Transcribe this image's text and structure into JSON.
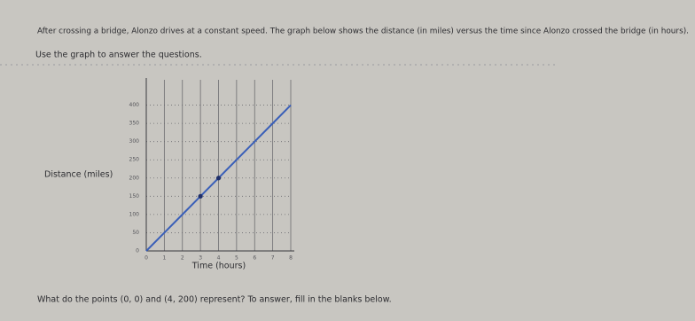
{
  "intro": "After crossing a bridge, Alonzo drives at a constant speed. The graph below shows the distance (in miles) versus the time since Alonzo crossed the bridge (in hours).",
  "instruction": "Use the graph to answer the questions.",
  "question": "What do the points (0, 0) and (4, 200) represent? To answer, fill in the blanks below.",
  "chart_data": {
    "type": "line",
    "x_label": "Time (hours)",
    "y_label": "Distance (miles)",
    "x": [
      0,
      1,
      2,
      3,
      4,
      5,
      6,
      7,
      8
    ],
    "series": [
      {
        "color": "#3a5fb8",
        "values": [
          0,
          50,
          100,
          150,
          200,
          250,
          300,
          350,
          400
        ]
      }
    ],
    "points": {
      "x": [
        3,
        4
      ],
      "values": [
        150,
        200
      ],
      "color": "#1f2f6a"
    },
    "xlim": [
      0,
      8
    ],
    "ylim": [
      0,
      450
    ],
    "xticks": [
      0,
      1,
      2,
      3,
      4,
      5,
      6,
      7,
      8
    ],
    "yticks": [
      0,
      50,
      100,
      150,
      200,
      250,
      300,
      350,
      400
    ],
    "grid": true
  }
}
